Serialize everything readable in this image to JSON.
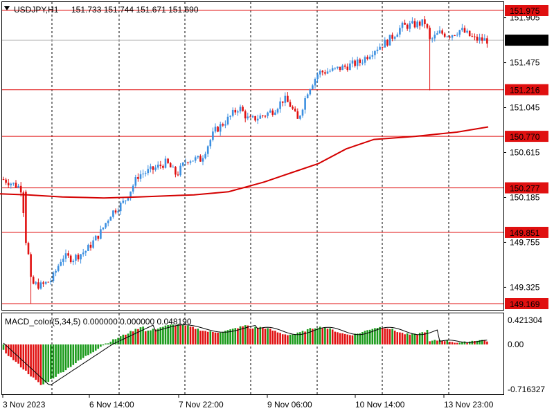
{
  "header": {
    "symbol_label": "USDJPY,H1",
    "ohlc": "151.733 151.744 151.671 151.690",
    "menu_arrow_icon": "triangle-down-icon"
  },
  "macd_header": {
    "label": "MACD_color(5,34,5) 0.000000 0.000000 0.048190"
  },
  "colors": {
    "bull": "#3b8fe0",
    "bear": "#e01010",
    "level_line": "#e01010",
    "ma_line": "#d40000",
    "macd_up": "#1a9a1a",
    "macd_down": "#e01010",
    "signal": "#000000",
    "price_tag_bg": "#000000"
  },
  "chart_data": [
    {
      "type": "candlestick",
      "symbol": "USDJPY",
      "timeframe": "H1",
      "price_axis_ticks": [
        "151.905",
        "151.475",
        "151.045",
        "150.615",
        "150.185",
        "149.755",
        "149.325"
      ],
      "time_axis_labels": [
        "3 Nov 2023",
        "6 Nov 14:00",
        "7 Nov 22:00",
        "9 Nov 06:00",
        "10 Nov 14:00",
        "13 Nov 23:00"
      ],
      "ylim": [
        149.14,
        152.0
      ],
      "current_price": "151.690",
      "horizontal_levels": [
        "151.975",
        "151.216",
        "150.770",
        "150.277",
        "149.851",
        "149.169"
      ],
      "moving_average": [
        [
          0,
          150.22
        ],
        [
          40,
          150.21
        ],
        [
          90,
          150.19
        ],
        [
          150,
          150.18
        ],
        [
          200,
          150.19
        ],
        [
          280,
          150.21
        ],
        [
          330,
          150.24
        ],
        [
          380,
          150.33
        ],
        [
          420,
          150.42
        ],
        [
          460,
          150.51
        ],
        [
          500,
          150.65
        ],
        [
          540,
          150.74
        ],
        [
          600,
          150.77
        ],
        [
          660,
          150.81
        ],
        [
          705,
          150.86
        ]
      ],
      "candles_approx": [
        [
          4,
          150.36
        ],
        [
          30,
          150.28
        ],
        [
          38,
          149.83
        ],
        [
          45,
          149.36
        ],
        [
          60,
          149.34
        ],
        [
          75,
          149.4
        ],
        [
          90,
          149.62
        ],
        [
          105,
          149.6
        ],
        [
          125,
          149.68
        ],
        [
          145,
          149.85
        ],
        [
          160,
          150.03
        ],
        [
          180,
          150.15
        ],
        [
          200,
          150.4
        ],
        [
          220,
          150.45
        ],
        [
          240,
          150.52
        ],
        [
          255,
          150.4
        ],
        [
          270,
          150.55
        ],
        [
          290,
          150.55
        ],
        [
          310,
          150.82
        ],
        [
          330,
          150.94
        ],
        [
          345,
          151.05
        ],
        [
          360,
          150.92
        ],
        [
          380,
          150.97
        ],
        [
          395,
          151.02
        ],
        [
          410,
          151.13
        ],
        [
          420,
          151.06
        ],
        [
          430,
          150.92
        ],
        [
          445,
          151.22
        ],
        [
          460,
          151.38
        ],
        [
          480,
          151.4
        ],
        [
          500,
          151.44
        ],
        [
          520,
          151.48
        ],
        [
          540,
          151.6
        ],
        [
          560,
          151.68
        ],
        [
          580,
          151.82
        ],
        [
          600,
          151.84
        ],
        [
          615,
          151.86
        ],
        [
          620,
          151.68
        ],
        [
          635,
          151.76
        ],
        [
          650,
          151.74
        ],
        [
          665,
          151.79
        ],
        [
          685,
          151.7
        ],
        [
          703,
          151.69
        ]
      ]
    },
    {
      "type": "bar",
      "name": "MACD_color(5,34,5)",
      "axis_ticks": [
        "0.421304",
        "0.00",
        "-0.716327"
      ],
      "ylim": [
        -0.72,
        0.43
      ]
    }
  ]
}
